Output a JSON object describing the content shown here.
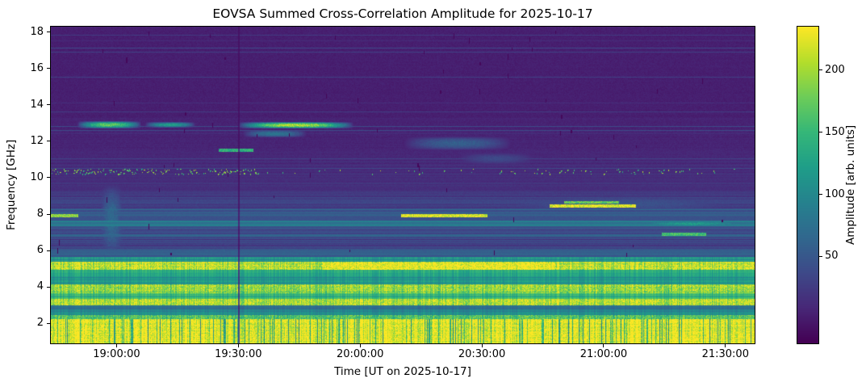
{
  "chart_data": {
    "type": "heatmap",
    "title": "EOVSA Summed Cross-Correlation Amplitude for 2025-10-17",
    "xlabel": "Time [UT on 2025-10-17]",
    "ylabel": "Frequency [GHz]",
    "colorbar_label": "Amplitude [arb. units]",
    "colormap": "viridis",
    "background_color": "#ffffff",
    "x_range_hours": [
      18.73,
      21.62
    ],
    "x_ticks": [
      {
        "hour": 19.0,
        "label": "19:00:00"
      },
      {
        "hour": 19.5,
        "label": "19:30:00"
      },
      {
        "hour": 20.0,
        "label": "20:00:00"
      },
      {
        "hour": 20.5,
        "label": "20:30:00"
      },
      {
        "hour": 21.0,
        "label": "21:00:00"
      },
      {
        "hour": 21.5,
        "label": "21:30:00"
      }
    ],
    "y_range_ghz": [
      0.9,
      18.3
    ],
    "y_ticks": [
      {
        "ghz": 2,
        "label": "2"
      },
      {
        "ghz": 4,
        "label": "4"
      },
      {
        "ghz": 6,
        "label": "6"
      },
      {
        "ghz": 8,
        "label": "8"
      },
      {
        "ghz": 10,
        "label": "10"
      },
      {
        "ghz": 12,
        "label": "12"
      },
      {
        "ghz": 14,
        "label": "14"
      },
      {
        "ghz": 16,
        "label": "16"
      },
      {
        "ghz": 18,
        "label": "18"
      }
    ],
    "amplitude_range": [
      -20,
      235
    ],
    "colorbar_ticks": [
      {
        "value": 50,
        "label": "50"
      },
      {
        "value": 100,
        "label": "100"
      },
      {
        "value": 150,
        "label": "150"
      },
      {
        "value": 200,
        "label": "200"
      }
    ],
    "colormap_anchors": [
      "#440154",
      "#482878",
      "#3e4a89",
      "#31688e",
      "#26828e",
      "#1f9e89",
      "#35b779",
      "#6dcd59",
      "#b4de2c",
      "#fde725"
    ],
    "bands_format": "[f_low_GHz, f_high_GHz, amplitude_arb_units]",
    "bands": [
      [
        0.9,
        2.25,
        230
      ],
      [
        2.25,
        2.45,
        160
      ],
      [
        2.45,
        2.75,
        100
      ],
      [
        2.75,
        3.0,
        70
      ],
      [
        3.0,
        3.35,
        205
      ],
      [
        3.35,
        3.65,
        140
      ],
      [
        3.65,
        4.15,
        190
      ],
      [
        4.15,
        4.55,
        110
      ],
      [
        4.55,
        4.95,
        130
      ],
      [
        4.95,
        5.4,
        210
      ],
      [
        5.4,
        5.65,
        120
      ],
      [
        5.65,
        6.1,
        55
      ],
      [
        6.1,
        6.75,
        30
      ],
      [
        6.75,
        6.88,
        70
      ],
      [
        6.88,
        7.35,
        30
      ],
      [
        7.35,
        7.65,
        85
      ],
      [
        7.65,
        7.9,
        45
      ],
      [
        7.9,
        8.15,
        60
      ],
      [
        8.15,
        8.7,
        35
      ],
      [
        8.7,
        9.3,
        25
      ],
      [
        9.3,
        10.2,
        15
      ],
      [
        10.2,
        10.55,
        12
      ],
      [
        10.55,
        11.6,
        8
      ],
      [
        11.6,
        13.3,
        5
      ],
      [
        13.3,
        18.3,
        2
      ]
    ],
    "features": [
      {
        "name": "calibration-gap-line",
        "type": "vline",
        "t": 19.5
      },
      {
        "name": "rfi-speckle-band",
        "type": "speckle",
        "f0": 10.2,
        "f1": 10.5,
        "amp": 220,
        "segments": [
          [
            18.73,
            19.58,
            0.55
          ],
          [
            19.58,
            20.55,
            0.05
          ],
          [
            20.55,
            20.75,
            0.18
          ],
          [
            20.75,
            21.35,
            0.14
          ],
          [
            21.35,
            21.62,
            0.05
          ]
        ]
      },
      {
        "name": "burst-13ghz-1",
        "type": "streak",
        "soft": true,
        "f0": 12.72,
        "f1": 13.08,
        "t0": 18.84,
        "t1": 19.1,
        "amp": 185
      },
      {
        "name": "burst-13ghz-2",
        "type": "streak",
        "soft": true,
        "f0": 12.78,
        "f1": 13.02,
        "t0": 19.12,
        "t1": 19.32,
        "amp": 130
      },
      {
        "name": "burst-13ghz-3",
        "type": "streak",
        "soft": true,
        "f0": 12.72,
        "f1": 13.02,
        "t0": 19.5,
        "t1": 19.97,
        "amp": 220
      },
      {
        "name": "burst-12.4ghz",
        "type": "streak",
        "soft": true,
        "f0": 12.25,
        "f1": 12.6,
        "t0": 19.52,
        "t1": 19.78,
        "amp": 85
      },
      {
        "name": "dash-11.5ghz",
        "type": "streak",
        "f0": 11.42,
        "f1": 11.56,
        "t0": 19.42,
        "t1": 19.56,
        "amp": 150
      },
      {
        "name": "smudge-12ghz",
        "type": "streak",
        "soft": true,
        "f0": 11.55,
        "f1": 12.25,
        "t0": 20.18,
        "t1": 20.62,
        "amp": 60
      },
      {
        "name": "smudge-11ghz",
        "type": "streak",
        "soft": true,
        "f0": 10.75,
        "f1": 11.35,
        "t0": 20.4,
        "t1": 20.72,
        "amp": 38
      },
      {
        "name": "streak-7.9ghz",
        "type": "streak",
        "f0": 7.86,
        "f1": 7.98,
        "t0": 20.17,
        "t1": 20.52,
        "amp": 235
      },
      {
        "name": "streak-8.45ghz",
        "type": "streak",
        "f0": 8.4,
        "f1": 8.52,
        "t0": 20.78,
        "t1": 21.13,
        "amp": 235
      },
      {
        "name": "streak-8.62ghz",
        "type": "streak",
        "f0": 8.58,
        "f1": 8.68,
        "t0": 20.84,
        "t1": 21.06,
        "amp": 185
      },
      {
        "name": "streak-7.5ghz-right",
        "type": "streak",
        "soft": true,
        "f0": 7.33,
        "f1": 7.62,
        "t0": 21.1,
        "t1": 21.62,
        "amp": 125
      },
      {
        "name": "dash-6.9ghz",
        "type": "streak",
        "f0": 6.82,
        "f1": 6.94,
        "t0": 21.24,
        "t1": 21.42,
        "amp": 165
      },
      {
        "name": "vertical-smear-1858",
        "type": "streak",
        "soft": true,
        "f0": 5.6,
        "f1": 9.7,
        "t0": 18.93,
        "t1": 19.03,
        "amp": 70
      },
      {
        "name": "teal-patch-8.5ghz-right",
        "type": "streak",
        "soft": true,
        "f0": 8.05,
        "f1": 9.05,
        "t0": 20.5,
        "t1": 21.62,
        "amp": 48
      },
      {
        "name": "bright-5ghz-mid",
        "type": "streak",
        "f0": 4.97,
        "f1": 5.33,
        "t0": 19.85,
        "t1": 20.8,
        "amp": 232
      },
      {
        "name": "dash-7.9ghz-left",
        "type": "streak",
        "f0": 7.84,
        "f1": 7.96,
        "t0": 18.73,
        "t1": 18.84,
        "amp": 200
      }
    ],
    "flag_marks": {
      "count": 60,
      "seed": 7
    }
  }
}
